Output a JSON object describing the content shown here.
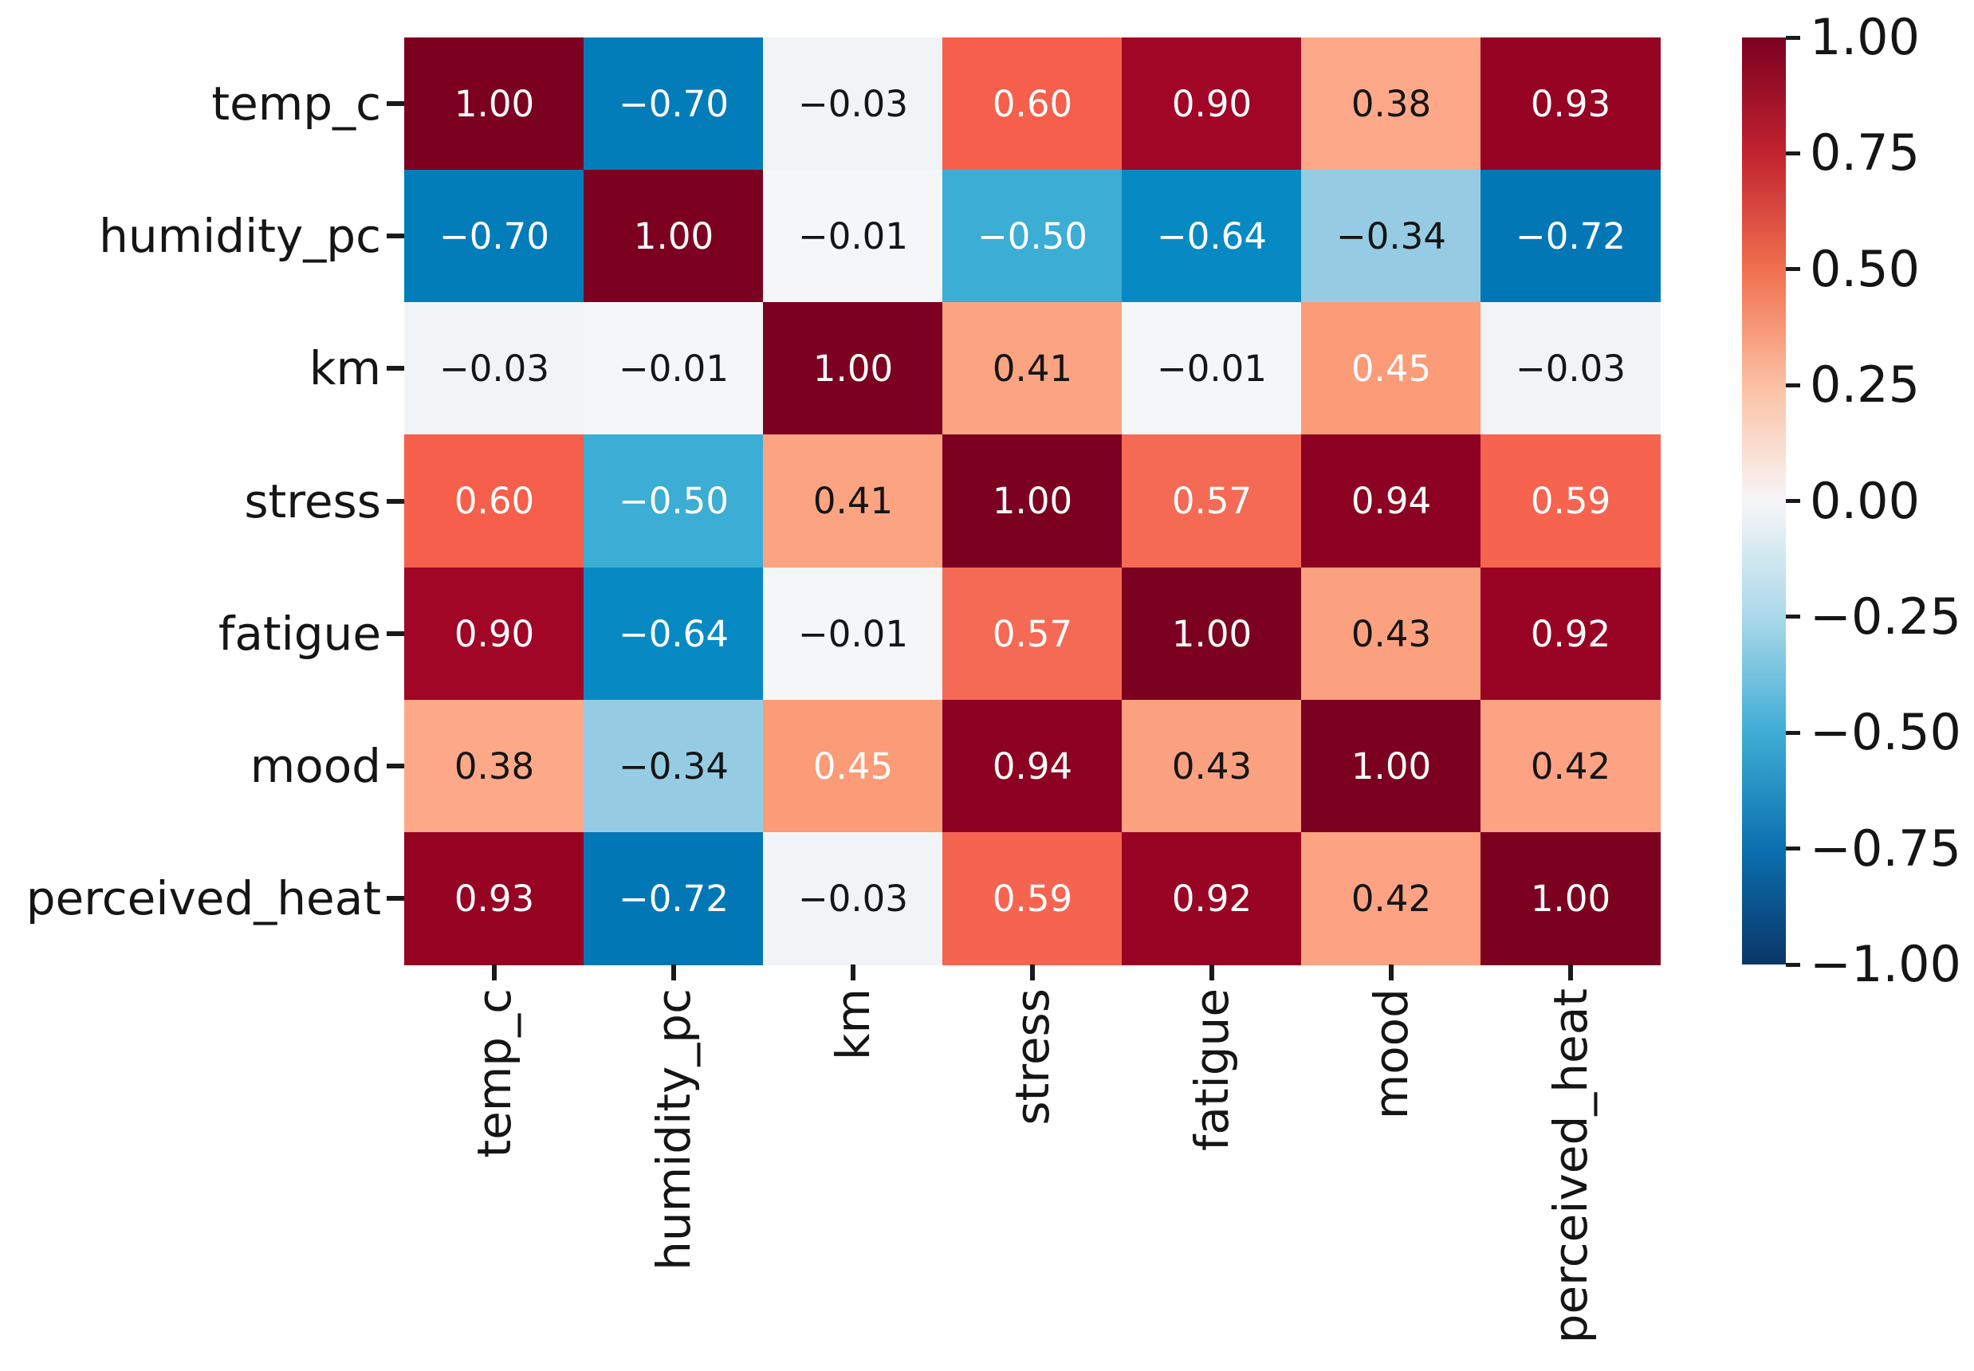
{
  "chart_data": {
    "type": "heatmap",
    "subtype": "correlation-matrix",
    "title": "",
    "variables": [
      "temp_c",
      "humidity_pc",
      "km",
      "stress",
      "fatigue",
      "mood",
      "perceived_heat"
    ],
    "x_tick_labels": [
      "temp_c",
      "humidity_pc",
      "km",
      "stress",
      "fatigue",
      "mood",
      "perceived_heat"
    ],
    "y_tick_labels": [
      "temp_c",
      "humidity_pc",
      "km",
      "stress",
      "fatigue",
      "mood",
      "perceived_heat"
    ],
    "matrix": [
      [
        1.0,
        -0.7,
        -0.03,
        0.6,
        0.9,
        0.38,
        0.93
      ],
      [
        -0.7,
        1.0,
        -0.01,
        -0.5,
        -0.64,
        -0.34,
        -0.72
      ],
      [
        -0.03,
        -0.01,
        1.0,
        0.41,
        -0.01,
        0.45,
        -0.03
      ],
      [
        0.6,
        -0.5,
        0.41,
        1.0,
        0.57,
        0.94,
        0.59
      ],
      [
        0.9,
        -0.64,
        -0.01,
        0.57,
        1.0,
        0.43,
        0.92
      ],
      [
        0.38,
        -0.34,
        0.45,
        0.94,
        0.43,
        1.0,
        0.42
      ],
      [
        0.93,
        -0.72,
        -0.03,
        0.59,
        0.92,
        0.42,
        1.0
      ]
    ],
    "value_decimals": 2,
    "vmin": -1.0,
    "vmax": 1.0,
    "grid": false,
    "legend_position": "right-colorbar",
    "colorbar_tick_labels": [
      "1.00",
      "0.75",
      "0.50",
      "0.25",
      "0.00",
      "−0.25",
      "−0.50",
      "−0.75",
      "−1.00"
    ],
    "colorbar_gradient_top_to_bottom": [
      {
        "pos": 0.0,
        "color": "#7c0121"
      },
      {
        "pos": 0.125,
        "color": "#c1232f"
      },
      {
        "pos": 0.25,
        "color": "#f0704f"
      },
      {
        "pos": 0.375,
        "color": "#fcc0a2"
      },
      {
        "pos": 0.5,
        "color": "#f6f6f7"
      },
      {
        "pos": 0.625,
        "color": "#abd8ea"
      },
      {
        "pos": 0.75,
        "color": "#3fadd5"
      },
      {
        "pos": 0.875,
        "color": "#0b70af"
      },
      {
        "pos": 1.0,
        "color": "#0b3668"
      }
    ],
    "cell_palette": {
      "1.00": "#7c0121",
      "0.94": "#8d0222",
      "0.93": "#960323",
      "0.92": "#9a0424",
      "0.90": "#a10627",
      "0.60": "#f65f4b",
      "0.59": "#f66450",
      "0.57": "#f46a55",
      "0.45": "#fb9b77",
      "0.43": "#fca180",
      "0.42": "#fda383",
      "0.41": "#fca381",
      "0.38": "#fea88a",
      "-0.01": "#f4f6f7",
      "-0.03": "#f0f4f6",
      "-0.34": "#95cce3",
      "-0.50": "#3cadd4",
      "-0.64": "#078ac4",
      "-0.70": "#037cba",
      "-0.72": "#0277b6"
    },
    "annotation_text_light": "#ffffff",
    "annotation_text_dark": "#151515",
    "white_text_abs_threshold": 0.45,
    "minus_glyph": "−"
  }
}
